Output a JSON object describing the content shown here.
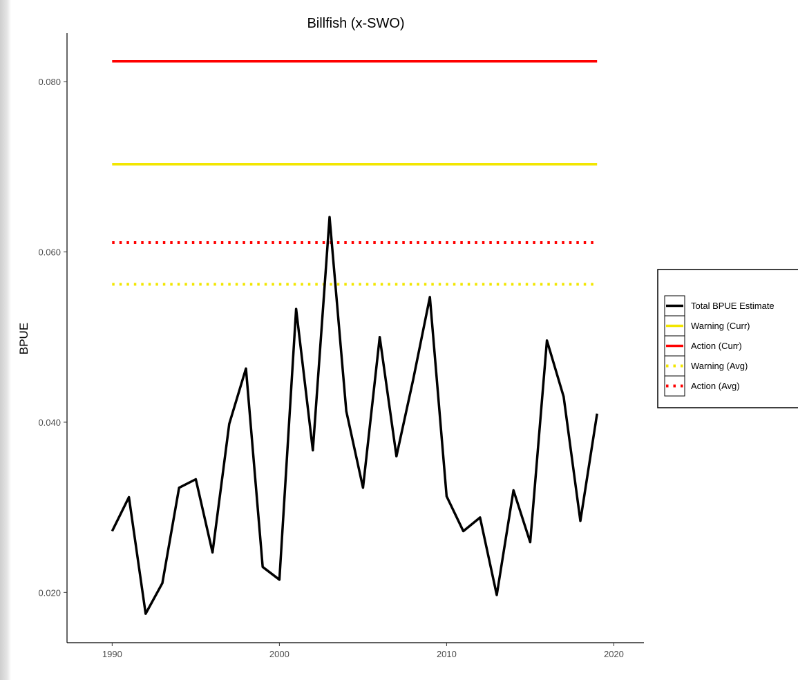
{
  "chart_data": {
    "type": "line",
    "title": "Billfish (x-SWO)",
    "xlabel": "",
    "ylabel": "BPUE",
    "xlim": [
      1987.3,
      2021.8
    ],
    "ylim": [
      0.0141,
      0.0857
    ],
    "x_ticks": [
      1990,
      2000,
      2010,
      2020
    ],
    "y_ticks": [
      0.02,
      0.04,
      0.06,
      0.08
    ],
    "y_tick_labels": [
      "0.020",
      "0.040",
      "0.060",
      "0.080"
    ],
    "grid": false,
    "legend_position": "right",
    "series": [
      {
        "name": "Total BPUE Estimate",
        "color": "#000000",
        "style": "solid",
        "x": [
          1990,
          1991,
          1992,
          1993,
          1994,
          1995,
          1996,
          1997,
          1998,
          1999,
          2000,
          2001,
          2002,
          2003,
          2004,
          2005,
          2006,
          2007,
          2008,
          2009,
          2010,
          2011,
          2012,
          2013,
          2014,
          2015,
          2016,
          2017,
          2018,
          2019
        ],
        "y": [
          0.0272,
          0.0312,
          0.0175,
          0.0211,
          0.0323,
          0.0333,
          0.0247,
          0.0398,
          0.0463,
          0.023,
          0.0215,
          0.0533,
          0.0367,
          0.0641,
          0.0413,
          0.0323,
          0.05,
          0.036,
          0.045,
          0.0547,
          0.0313,
          0.0272,
          0.0288,
          0.0197,
          0.032,
          0.0259,
          0.0496,
          0.043,
          0.0284,
          0.041
        ]
      },
      {
        "name": "Warning (Curr)",
        "color": "#f2e600",
        "style": "solid",
        "x": [
          1990,
          2019
        ],
        "y": [
          0.0703,
          0.0703
        ]
      },
      {
        "name": "Action (Curr)",
        "color": "#ff0000",
        "style": "solid",
        "x": [
          1990,
          2019
        ],
        "y": [
          0.0824,
          0.0824
        ]
      },
      {
        "name": "Warning (Avg)",
        "color": "#f2e600",
        "style": "dotted",
        "x": [
          1990,
          2019
        ],
        "y": [
          0.0562,
          0.0562
        ]
      },
      {
        "name": "Action (Avg)",
        "color": "#ff0000",
        "style": "dotted",
        "x": [
          1990,
          2019
        ],
        "y": [
          0.0611,
          0.0611
        ]
      }
    ],
    "legend": [
      "Total BPUE Estimate",
      "Warning (Curr)",
      "Action (Curr)",
      "Warning (Avg)",
      "Action (Avg)"
    ]
  }
}
